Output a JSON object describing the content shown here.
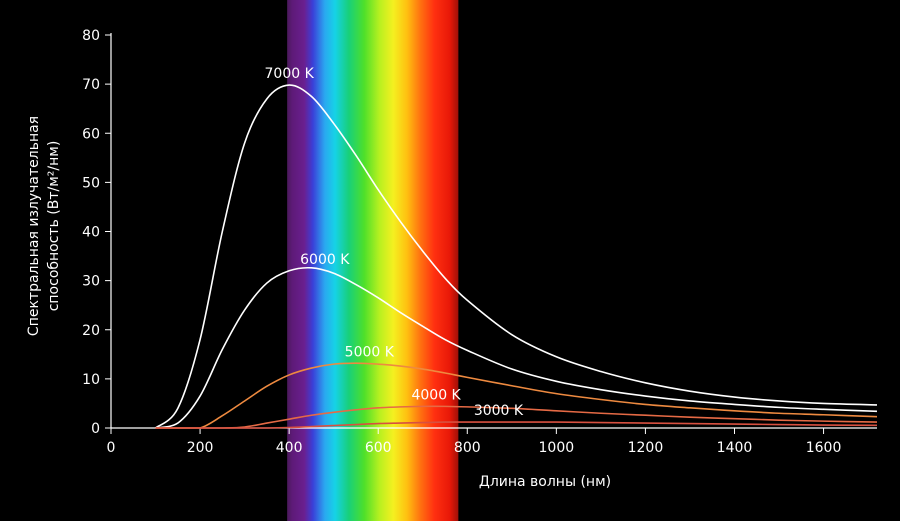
{
  "chart_data": {
    "type": "line",
    "xlabel": "Длина волны (нм)",
    "ylabel_lines": [
      "Спектральная излучательная",
      "способность (Вт/м²/нм)"
    ],
    "xlim": [
      0,
      1720
    ],
    "ylim": [
      0,
      80
    ],
    "x_ticks": [
      0,
      200,
      400,
      600,
      800,
      1000,
      1200,
      1400,
      1600
    ],
    "y_ticks": [
      0,
      10,
      20,
      30,
      40,
      50,
      60,
      70,
      80
    ],
    "grid": false,
    "visible_spectrum_nm": [
      400,
      780
    ],
    "x": [
      100,
      150,
      200,
      250,
      300,
      350,
      400,
      450,
      500,
      550,
      600,
      650,
      700,
      750,
      800,
      900,
      1000,
      1100,
      1200,
      1300,
      1400,
      1500,
      1600,
      1720
    ],
    "series": [
      {
        "name": "7000 K",
        "color": "#ffffff",
        "values": [
          0.0,
          4.0,
          18.0,
          40.0,
          58.0,
          67.0,
          69.8,
          67.5,
          62.0,
          55.5,
          48.5,
          42.0,
          36.0,
          30.5,
          26.0,
          19.0,
          14.5,
          11.5,
          9.2,
          7.5,
          6.3,
          5.5,
          5.0,
          4.7
        ]
      },
      {
        "name": "6000 K",
        "color": "#ffffff",
        "values": [
          0.0,
          1.0,
          6.5,
          16.0,
          24.0,
          29.5,
          32.0,
          32.6,
          31.5,
          29.2,
          26.5,
          23.5,
          20.7,
          18.0,
          15.8,
          12.0,
          9.5,
          7.8,
          6.5,
          5.5,
          4.8,
          4.2,
          3.8,
          3.4
        ]
      },
      {
        "name": "5000 K",
        "color": "#ee8a40",
        "values": [
          0.0,
          0.0,
          0.0,
          2.5,
          5.5,
          8.5,
          10.8,
          12.2,
          13.0,
          13.2,
          13.0,
          12.6,
          12.0,
          11.2,
          10.3,
          8.6,
          7.0,
          5.8,
          4.8,
          4.1,
          3.5,
          3.0,
          2.7,
          2.3
        ]
      },
      {
        "name": "4000 K",
        "color": "#e66a45",
        "values": [
          0.0,
          0.0,
          0.0,
          0.0,
          0.2,
          1.0,
          1.8,
          2.6,
          3.2,
          3.7,
          4.1,
          4.3,
          4.4,
          4.4,
          4.3,
          4.0,
          3.5,
          3.0,
          2.6,
          2.2,
          1.9,
          1.6,
          1.4,
          1.2
        ]
      },
      {
        "name": "3000 K",
        "color": "#d85040",
        "values": [
          0.0,
          0.0,
          0.0,
          0.0,
          0.0,
          0.0,
          0.1,
          0.3,
          0.5,
          0.7,
          0.9,
          1.0,
          1.1,
          1.2,
          1.2,
          1.2,
          1.2,
          1.1,
          1.0,
          0.9,
          0.8,
          0.7,
          0.6,
          0.55
        ]
      }
    ],
    "labels": [
      {
        "text": "7000 K",
        "series": 0,
        "at_x": 400
      },
      {
        "text": "6000 K",
        "series": 1,
        "at_x": 480
      },
      {
        "text": "5000 K",
        "series": 2,
        "at_x": 580
      },
      {
        "text": "4000 K",
        "series": 3,
        "at_x": 730
      },
      {
        "text": "3000 K",
        "series": 4,
        "at_x": 870
      }
    ]
  }
}
